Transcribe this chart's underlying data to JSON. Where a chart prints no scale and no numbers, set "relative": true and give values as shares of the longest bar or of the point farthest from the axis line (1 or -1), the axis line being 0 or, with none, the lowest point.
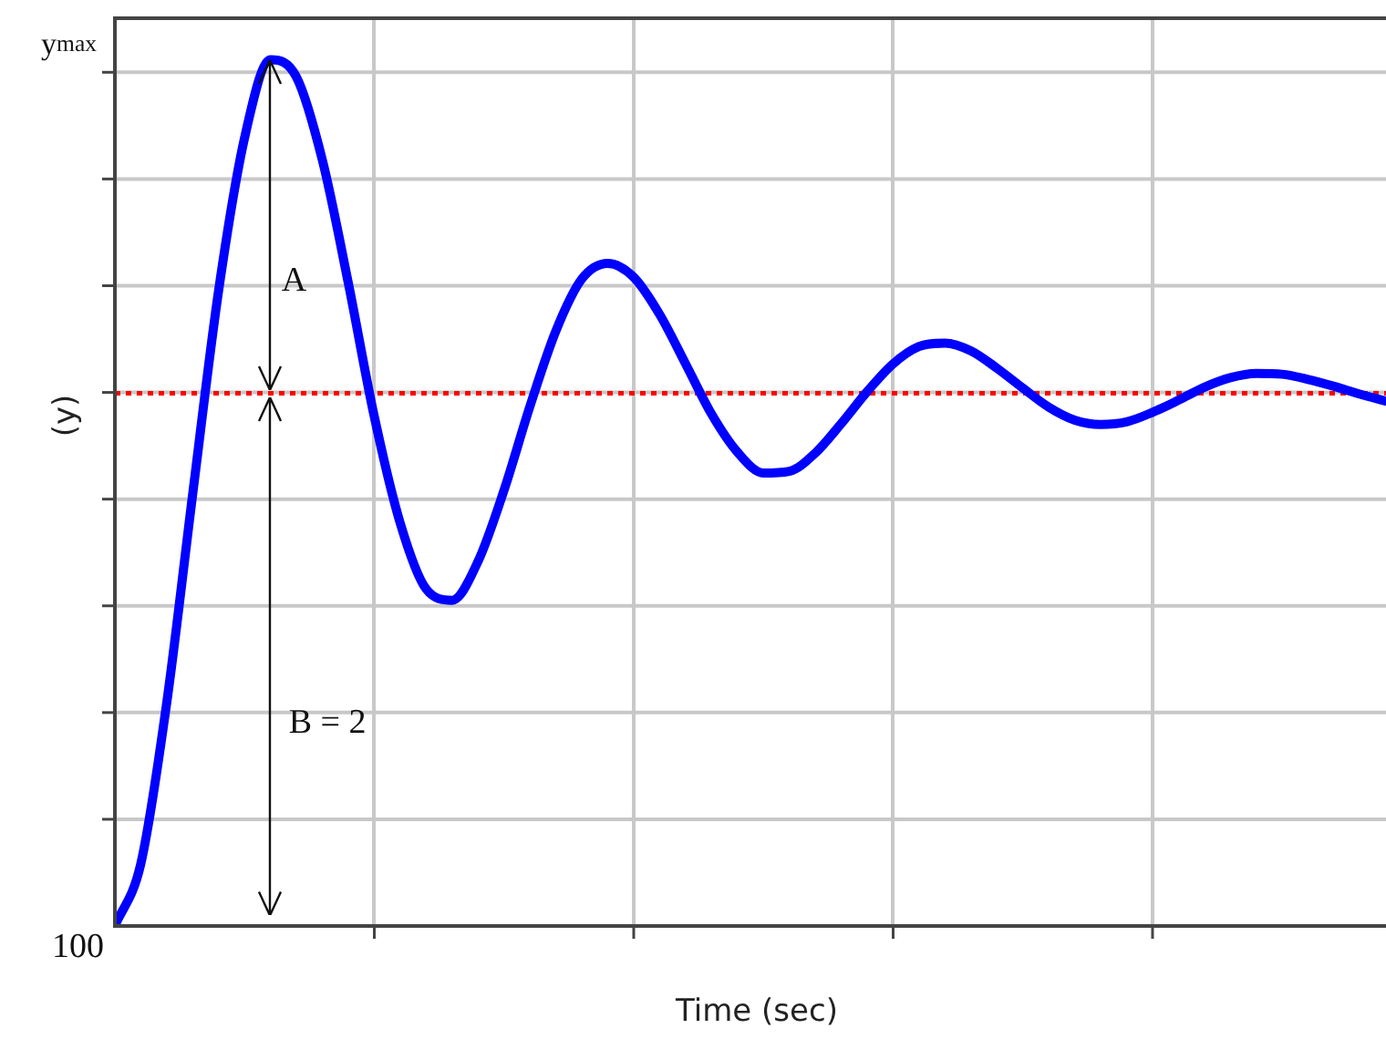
{
  "chart_data": {
    "type": "line",
    "relative": true,
    "xlabel": "Time (sec)",
    "ylabel": "(y)",
    "grid": true,
    "legend": false,
    "marker": "none",
    "line_style": "solid",
    "categories": [
      null,
      null,
      null,
      null,
      null,
      null,
      null,
      null,
      null,
      null,
      null,
      null,
      null,
      null,
      null,
      null,
      null,
      null,
      null,
      null,
      null,
      null,
      null,
      null,
      null,
      null,
      null,
      null,
      null,
      null,
      null,
      null,
      null,
      null,
      null,
      null,
      null,
      null,
      null,
      null,
      null,
      null,
      null,
      null,
      null,
      null,
      null,
      null,
      null,
      null
    ],
    "series": [
      {
        "color": "#0000ff",
        "values": [
          0,
          0.072,
          0.258,
          0.499,
          0.734,
          0.91,
          1,
          0.98,
          0.884,
          0.742,
          0.588,
          0.465,
          0.389,
          0.376,
          0.421,
          0.503,
          0.6,
          0.687,
          0.747,
          0.765,
          0.749,
          0.706,
          0.649,
          0.591,
          0.547,
          0.523,
          0.525,
          0.546,
          0.58,
          0.617,
          0.649,
          0.669,
          0.673,
          0.664,
          0.644,
          0.621,
          0.599,
          0.584,
          0.579,
          0.582,
          0.593,
          0.607,
          0.622,
          0.633,
          0.638,
          0.637,
          0.631,
          0.623,
          0.614,
          0.606
        ]
      }
    ],
    "ref_lines": [
      {
        "axis": "y",
        "value": 0.615,
        "color": "#ff0000",
        "line_style": "dotted"
      }
    ],
    "annotations": [
      "y$_{max}$",
      "100",
      "A",
      "B = 2"
    ]
  }
}
